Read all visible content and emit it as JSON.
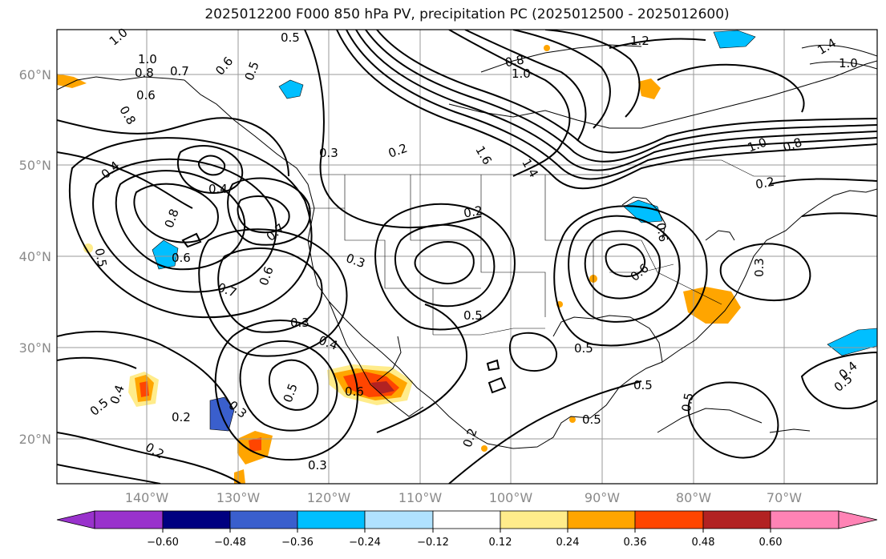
{
  "title": "2025012200 F000 850 hPa PV, precipitation PC (2025012500 - 2025012600)",
  "map": {
    "lat_labels": [
      "60°N",
      "50°N",
      "40°N",
      "30°N",
      "20°N"
    ],
    "lon_labels": [
      "140°W",
      "130°W",
      "120°W",
      "110°W",
      "100°W",
      "90°W",
      "80°W",
      "70°W"
    ],
    "contour_labels": [
      "1.0",
      "1.0",
      "0.5",
      "0.8",
      "0.7",
      "0.6",
      "0.6",
      "0.5",
      "0.8",
      "1.2",
      "1.4",
      "1.0",
      "1.0",
      "0.8",
      "1.0",
      "0.8",
      "0.3",
      "0.2",
      "1.6",
      "1.4",
      "0.4",
      "0.4",
      "0.8",
      "0.6",
      "0.5",
      "0.7",
      "0.2",
      "0.3",
      "0.2",
      "0.6",
      "0.7",
      "0.6",
      "0.3",
      "0.4",
      "0.5",
      "0.5",
      "0.5",
      "0.5",
      "0.6",
      "0.4",
      "0.5",
      "0.2",
      "0.3",
      "0.2",
      "0.3",
      "0.5",
      "0.5",
      "0.4",
      "0.3",
      "0.6",
      "0.2",
      "0.5"
    ]
  },
  "colorbar": {
    "ticks": [
      "−0.60",
      "−0.48",
      "−0.36",
      "−0.24",
      "−0.12",
      "0.12",
      "0.24",
      "0.36",
      "0.48",
      "0.60"
    ],
    "colors": [
      "#9932cc",
      "#000080",
      "#3a5fcd",
      "#00bfff",
      "#b0e2ff",
      "#ffffff",
      "#ffec8b",
      "#ffa500",
      "#ff4500",
      "#b22222",
      "#ff83b5"
    ]
  }
}
